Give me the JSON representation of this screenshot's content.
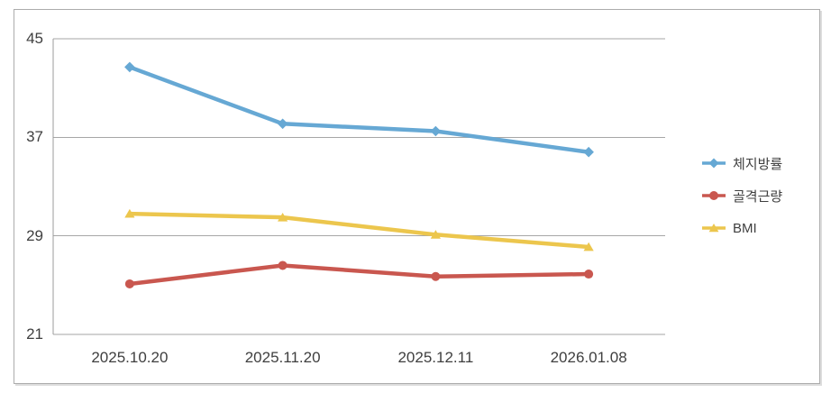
{
  "chart_data": {
    "type": "line",
    "title": "",
    "xlabel": "",
    "ylabel": "",
    "categories": [
      "2025.10.20",
      "2025.11.20",
      "2025.12.11",
      "2026.01.08"
    ],
    "series": [
      {
        "name": "체지방률",
        "values": [
          42.7,
          38.1,
          37.5,
          35.8
        ],
        "color": "#66a8d4",
        "marker": "diamond"
      },
      {
        "name": "골격근량",
        "values": [
          25.1,
          26.6,
          25.7,
          25.9
        ],
        "color": "#c9574f",
        "marker": "circle"
      },
      {
        "name": "BMI",
        "values": [
          30.8,
          30.5,
          29.1,
          28.1
        ],
        "color": "#ecc64d",
        "marker": "triangle"
      }
    ],
    "ylim": [
      21,
      45
    ],
    "y_ticks": [
      45,
      37,
      29,
      21
    ],
    "grid": true,
    "legend_position": "right",
    "gridline_color": "#a6a6a6",
    "axis_line_color": "#9b9b9b",
    "axis_text_color": "#3f3f3f"
  }
}
